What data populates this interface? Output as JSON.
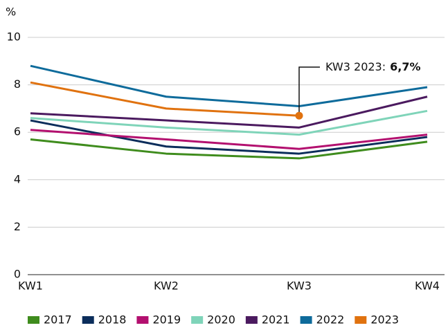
{
  "chart_data": {
    "type": "line",
    "y_label": "%",
    "categories": [
      "KW1",
      "KW2",
      "KW3",
      "KW4"
    ],
    "series": [
      {
        "name": "2017",
        "color": "#3f8c1d",
        "values": [
          5.7,
          5.1,
          4.9,
          5.6
        ]
      },
      {
        "name": "2018",
        "color": "#0b2d5b",
        "values": [
          6.5,
          5.4,
          5.1,
          5.8
        ]
      },
      {
        "name": "2019",
        "color": "#b3106f",
        "values": [
          6.1,
          5.7,
          5.3,
          5.9
        ]
      },
      {
        "name": "2020",
        "color": "#7fd4b9",
        "values": [
          6.6,
          6.2,
          5.9,
          6.9
        ]
      },
      {
        "name": "2021",
        "color": "#4b1a5f",
        "values": [
          6.8,
          6.5,
          6.2,
          7.5
        ]
      },
      {
        "name": "2022",
        "color": "#0e6b9b",
        "values": [
          8.8,
          7.5,
          7.1,
          7.9
        ]
      },
      {
        "name": "2023",
        "color": "#e0720f",
        "values": [
          8.1,
          7.0,
          6.7,
          null
        ],
        "value_labels": [
          null,
          null,
          "6,7%",
          null
        ]
      }
    ],
    "annotation": "KW3 2023:",
    "ylim": [
      0,
      10
    ],
    "yticks": [
      0,
      2,
      4,
      6,
      8,
      10
    ],
    "grid": true,
    "legend": "bottom"
  }
}
